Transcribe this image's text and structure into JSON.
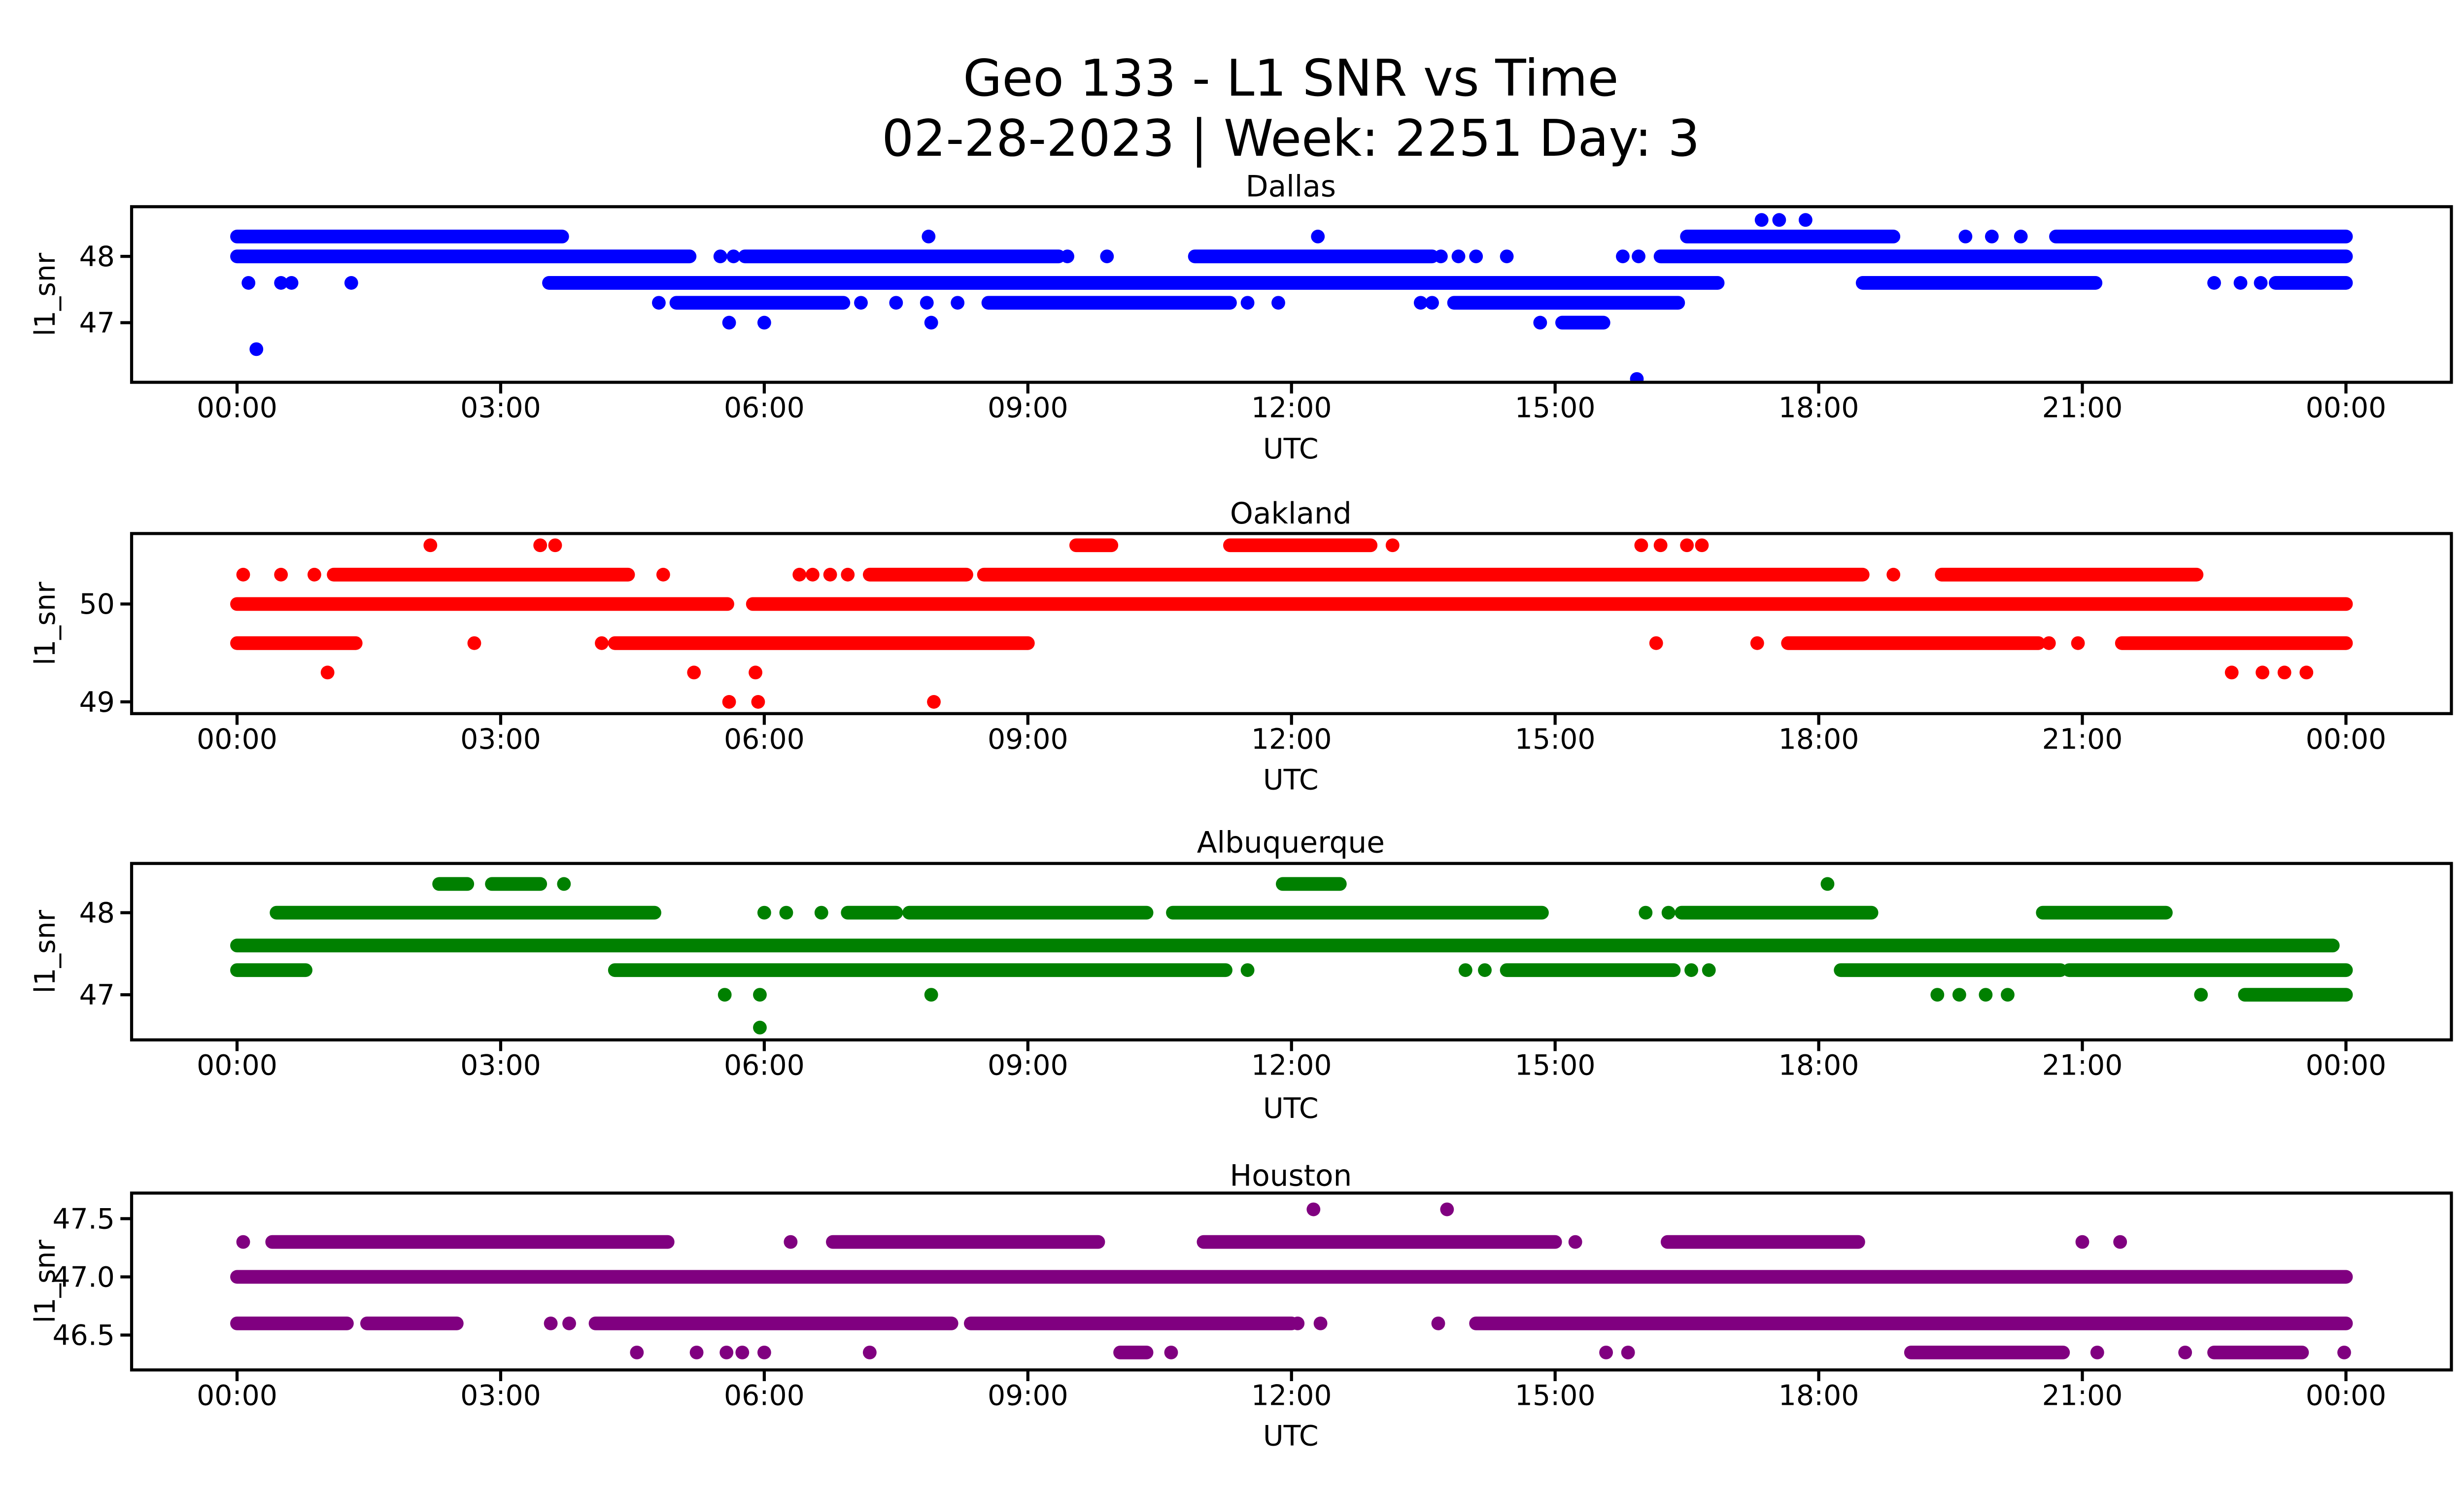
{
  "header": {
    "title_line1": "Geo 133 - L1 SNR vs Time",
    "title_line2": "02-28-2023 | Week: 2251 Day: 3"
  },
  "chart_data": [
    {
      "type": "scatter",
      "title": "Dallas",
      "color": "#0000FF",
      "xlabel": "UTC",
      "ylabel": "l1_snr",
      "xlim": [
        -1.2,
        25.2
      ],
      "ylim": [
        46.1,
        48.75
      ],
      "xticks": {
        "values": [
          0,
          3,
          6,
          9,
          12,
          15,
          18,
          21,
          24
        ],
        "labels": [
          "00:00",
          "03:00",
          "06:00",
          "09:00",
          "12:00",
          "15:00",
          "18:00",
          "21:00",
          "00:00"
        ]
      },
      "yticks": {
        "values": [
          47,
          48
        ],
        "labels": [
          "47",
          "48"
        ]
      },
      "rows": [
        {
          "y": 48.55,
          "segments": [],
          "dots": [
            17.35,
            17.55,
            17.85
          ]
        },
        {
          "y": 48.3,
          "segments": [
            [
              0,
              3.7
            ],
            [
              16.5,
              18.85
            ],
            [
              20.7,
              24
            ]
          ],
          "dots": [
            7.87,
            12.3,
            19.67,
            19.97,
            20.3
          ]
        },
        {
          "y": 48.0,
          "segments": [
            [
              0,
              5.15
            ],
            [
              5.78,
              9.35
            ],
            [
              10.9,
              13.6
            ],
            [
              16.2,
              24
            ]
          ],
          "dots": [
            5.5,
            5.65,
            9.45,
            9.9,
            13.7,
            13.9,
            14.1,
            14.45,
            15.77,
            15.95
          ]
        },
        {
          "y": 47.6,
          "segments": [
            [
              3.55,
              16.85
            ],
            [
              18.5,
              21.15
            ],
            [
              23.2,
              24
            ]
          ],
          "dots": [
            0.13,
            0.5,
            0.62,
            1.3,
            22.5,
            22.8,
            23.03
          ]
        },
        {
          "y": 47.3,
          "segments": [
            [
              5.0,
              6.9
            ],
            [
              8.55,
              11.3
            ],
            [
              13.85,
              16.4
            ]
          ],
          "dots": [
            4.8,
            7.1,
            7.5,
            7.85,
            8.2,
            11.5,
            11.85,
            13.47,
            13.6
          ]
        },
        {
          "y": 47.0,
          "segments": [
            [
              15.08,
              15.55
            ]
          ],
          "dots": [
            5.6,
            6.0,
            7.9,
            14.83
          ]
        },
        {
          "y": 46.6,
          "segments": [],
          "dots": [
            0.22
          ]
        },
        {
          "y": 46.15,
          "segments": [],
          "dots": [
            15.93
          ]
        }
      ]
    },
    {
      "type": "scatter",
      "title": "Oakland",
      "color": "#FF0000",
      "xlabel": "UTC",
      "ylabel": "l1_snr",
      "xlim": [
        -1.2,
        25.2
      ],
      "ylim": [
        48.88,
        50.72
      ],
      "xticks": {
        "values": [
          0,
          3,
          6,
          9,
          12,
          15,
          18,
          21,
          24
        ],
        "labels": [
          "00:00",
          "03:00",
          "06:00",
          "09:00",
          "12:00",
          "15:00",
          "18:00",
          "21:00",
          "00:00"
        ]
      },
      "yticks": {
        "values": [
          49,
          50
        ],
        "labels": [
          "49",
          "50"
        ]
      },
      "rows": [
        {
          "y": 50.6,
          "segments": [
            [
              9.55,
              9.95
            ],
            [
              11.3,
              12.9
            ]
          ],
          "dots": [
            2.2,
            3.45,
            3.62,
            13.15,
            15.98,
            16.2,
            16.5,
            16.67
          ]
        },
        {
          "y": 50.3,
          "segments": [
            [
              1.1,
              4.45
            ],
            [
              7.2,
              8.3
            ],
            [
              8.5,
              18.5
            ],
            [
              19.4,
              22.3
            ]
          ],
          "dots": [
            0.07,
            0.5,
            0.88,
            4.85,
            6.4,
            6.55,
            6.75,
            6.95,
            18.85
          ]
        },
        {
          "y": 50.0,
          "segments": [
            [
              0,
              5.58
            ],
            [
              5.87,
              24
            ]
          ],
          "dots": []
        },
        {
          "y": 49.6,
          "segments": [
            [
              0,
              1.35
            ],
            [
              4.3,
              9.0
            ],
            [
              17.65,
              20.5
            ],
            [
              21.45,
              24
            ]
          ],
          "dots": [
            2.7,
            4.15,
            16.15,
            17.3,
            20.62,
            20.95
          ]
        },
        {
          "y": 49.3,
          "segments": [],
          "dots": [
            1.03,
            5.2,
            5.9,
            22.7,
            23.05,
            23.3,
            23.55
          ]
        },
        {
          "y": 49.0,
          "segments": [],
          "dots": [
            5.6,
            5.93,
            7.93
          ]
        }
      ]
    },
    {
      "type": "scatter",
      "title": "Albuquerque",
      "color": "#008000",
      "xlabel": "UTC",
      "ylabel": "l1_snr",
      "xlim": [
        -1.2,
        25.2
      ],
      "ylim": [
        46.45,
        48.6
      ],
      "xticks": {
        "values": [
          0,
          3,
          6,
          9,
          12,
          15,
          18,
          21,
          24
        ],
        "labels": [
          "00:00",
          "03:00",
          "06:00",
          "09:00",
          "12:00",
          "15:00",
          "18:00",
          "21:00",
          "00:00"
        ]
      },
      "yticks": {
        "values": [
          47,
          48
        ],
        "labels": [
          "47",
          "48"
        ]
      },
      "rows": [
        {
          "y": 48.35,
          "segments": [
            [
              2.3,
              2.62
            ],
            [
              2.9,
              3.45
            ],
            [
              11.9,
              12.55
            ]
          ],
          "dots": [
            3.72,
            18.1
          ]
        },
        {
          "y": 48.0,
          "segments": [
            [
              0.45,
              4.75
            ],
            [
              6.95,
              7.5
            ],
            [
              7.65,
              10.35
            ],
            [
              10.65,
              14.85
            ],
            [
              16.44,
              18.6
            ],
            [
              20.55,
              21.95
            ]
          ],
          "dots": [
            6.0,
            6.25,
            6.65,
            16.03,
            16.29
          ]
        },
        {
          "y": 47.6,
          "segments": [
            [
              0,
              23.85
            ]
          ],
          "dots": []
        },
        {
          "y": 47.3,
          "segments": [
            [
              0,
              0.78
            ],
            [
              4.3,
              11.25
            ],
            [
              14.45,
              16.35
            ],
            [
              18.25,
              20.75
            ],
            [
              20.85,
              24
            ]
          ],
          "dots": [
            11.5,
            13.98,
            14.2,
            16.55,
            16.75
          ]
        },
        {
          "y": 47.0,
          "segments": [
            [
              22.85,
              24
            ]
          ],
          "dots": [
            5.55,
            5.95,
            7.9,
            19.35,
            19.6,
            19.9,
            20.15,
            22.35
          ]
        },
        {
          "y": 46.6,
          "segments": [],
          "dots": [
            5.95
          ]
        }
      ]
    },
    {
      "type": "scatter",
      "title": "Houston",
      "color": "#800080",
      "xlabel": "UTC",
      "ylabel": "l1_snr",
      "xlim": [
        -1.2,
        25.2
      ],
      "ylim": [
        46.2,
        47.72
      ],
      "xticks": {
        "values": [
          0,
          3,
          6,
          9,
          12,
          15,
          18,
          21,
          24
        ],
        "labels": [
          "00:00",
          "03:00",
          "06:00",
          "09:00",
          "12:00",
          "15:00",
          "18:00",
          "21:00",
          "00:00"
        ]
      },
      "yticks": {
        "values": [
          46.5,
          47.0,
          47.5
        ],
        "labels": [
          "46.5",
          "47.0",
          "47.5"
        ]
      },
      "rows": [
        {
          "y": 47.58,
          "segments": [],
          "dots": [
            12.25,
            13.77
          ]
        },
        {
          "y": 47.3,
          "segments": [
            [
              0.4,
              4.9
            ],
            [
              6.78,
              9.8
            ],
            [
              11.0,
              15.0
            ],
            [
              16.28,
              18.45
            ]
          ],
          "dots": [
            0.07,
            6.3,
            15.23,
            21.0,
            21.43
          ]
        },
        {
          "y": 47.0,
          "segments": [
            [
              0,
              24
            ]
          ],
          "dots": []
        },
        {
          "y": 46.6,
          "segments": [
            [
              0,
              1.25
            ],
            [
              1.48,
              2.5
            ],
            [
              4.08,
              8.13
            ],
            [
              8.35,
              12.0
            ],
            [
              14.1,
              24
            ]
          ],
          "dots": [
            3.57,
            3.78,
            12.07,
            12.33,
            13.67
          ]
        },
        {
          "y": 46.35,
          "segments": [
            [
              10.05,
              10.35
            ],
            [
              19.05,
              20.78
            ],
            [
              22.5,
              23.5
            ]
          ],
          "dots": [
            4.55,
            5.23,
            5.57,
            5.75,
            6.0,
            7.2,
            10.63,
            15.58,
            15.83,
            21.17,
            22.17,
            23.98
          ]
        }
      ]
    }
  ]
}
